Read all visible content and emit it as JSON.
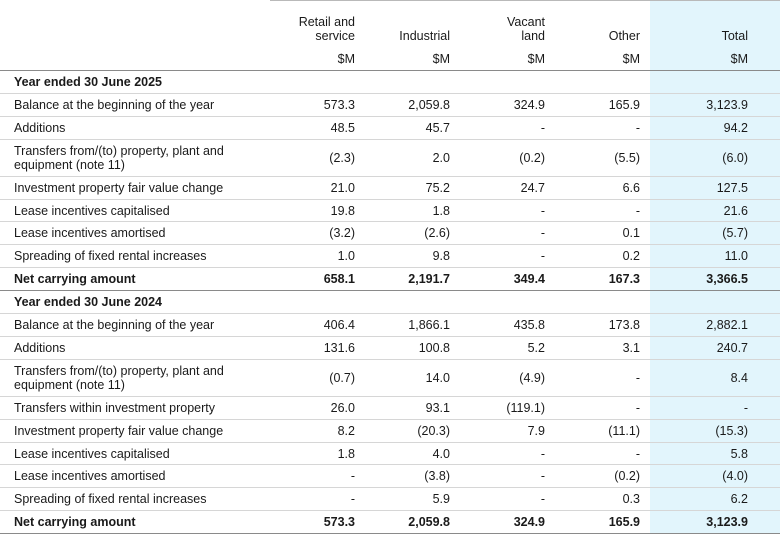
{
  "header": {
    "columns": [
      {
        "title": "Retail and service",
        "unit": "$M"
      },
      {
        "title": "Industrial",
        "unit": "$M"
      },
      {
        "title": "Vacant land",
        "unit": "$M"
      },
      {
        "title": "Other",
        "unit": "$M"
      },
      {
        "title": "Total",
        "unit": "$M"
      }
    ]
  },
  "sections": [
    {
      "title": "Year ended 30 June 2025",
      "rows": [
        [
          "Balance at the beginning of the year",
          "573.3",
          "2,059.8",
          "324.9",
          "165.9",
          "3,123.9"
        ],
        [
          "Additions",
          "48.5",
          "45.7",
          "-",
          "-",
          "94.2"
        ],
        [
          "Transfers from/(to) property, plant and equipment (note 11)",
          "(2.3)",
          "2.0",
          "(0.2)",
          "(5.5)",
          "(6.0)"
        ],
        [
          "Investment property fair value change",
          "21.0",
          "75.2",
          "24.7",
          "6.6",
          "127.5"
        ],
        [
          "Lease incentives capitalised",
          "19.8",
          "1.8",
          "-",
          "-",
          "21.6"
        ],
        [
          "Lease incentives amortised",
          "(3.2)",
          "(2.6)",
          "-",
          "0.1",
          "(5.7)"
        ],
        [
          "Spreading of fixed rental increases",
          "1.0",
          "9.8",
          "-",
          "0.2",
          "11.0"
        ]
      ],
      "total": [
        "Net carrying amount",
        "658.1",
        "2,191.7",
        "349.4",
        "167.3",
        "3,366.5"
      ]
    },
    {
      "title": "Year ended 30 June 2024",
      "rows": [
        [
          "Balance at the beginning of the year",
          "406.4",
          "1,866.1",
          "435.8",
          "173.8",
          "2,882.1"
        ],
        [
          "Additions",
          "131.6",
          "100.8",
          "5.2",
          "3.1",
          "240.7"
        ],
        [
          "Transfers from/(to) property, plant and equipment (note 11)",
          "(0.7)",
          "14.0",
          "(4.9)",
          "-",
          "8.4"
        ],
        [
          "Transfers within investment property",
          "26.0",
          "93.1",
          "(119.1)",
          "-",
          "-"
        ],
        [
          "Investment property fair value change",
          "8.2",
          "(20.3)",
          "7.9",
          "(11.1)",
          "(15.3)"
        ],
        [
          "Lease incentives capitalised",
          "1.8",
          "4.0",
          "-",
          "-",
          "5.8"
        ],
        [
          "Lease incentives amortised",
          "-",
          "(3.8)",
          "-",
          "(0.2)",
          "(4.0)"
        ],
        [
          "Spreading of fixed rental increases",
          "-",
          "5.9",
          "-",
          "0.3",
          "6.2"
        ]
      ],
      "total": [
        "Net carrying amount",
        "573.3",
        "2,059.8",
        "324.9",
        "165.9",
        "3,123.9"
      ]
    }
  ]
}
